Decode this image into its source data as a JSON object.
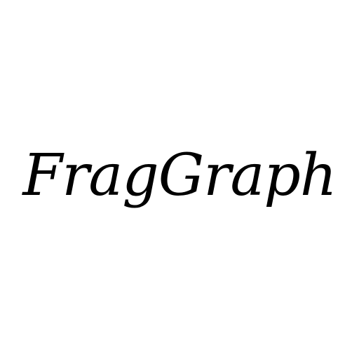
{
  "logo": {
    "text": "FragGraph",
    "color": "#000000"
  },
  "background_color": "#ffffff"
}
